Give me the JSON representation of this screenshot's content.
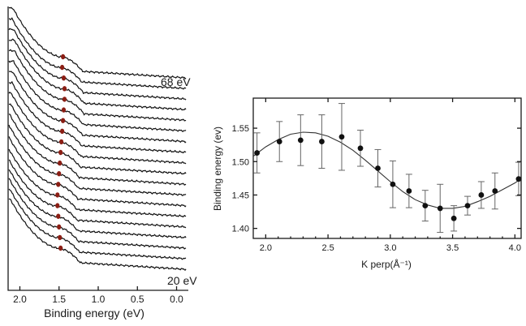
{
  "chart_data": [
    {
      "type": "line",
      "panel": "left",
      "title": "",
      "xlabel": "Binding energy (eV)",
      "ylabel": "",
      "xlim": [
        2.15,
        -0.15
      ],
      "x_ticks": [
        "2.0",
        "1.5",
        "1.0",
        "0.5",
        "0.0"
      ],
      "x_tick_values": [
        2.0,
        1.5,
        1.0,
        0.5,
        0.0
      ],
      "top_label": "68 eV",
      "bottom_label": "20 eV",
      "curve_count": 19,
      "peak_energies": [
        1.45,
        1.46,
        1.44,
        1.43,
        1.43,
        1.44,
        1.45,
        1.46,
        1.47,
        1.48,
        1.49,
        1.5,
        1.51,
        1.52,
        1.52,
        1.51,
        1.5,
        1.49,
        1.48
      ],
      "marker_color": "#8b1e14",
      "curve_color": "#111111"
    },
    {
      "type": "scatter",
      "panel": "right",
      "title": "",
      "xlabel": "K perp(Å⁻¹)",
      "ylabel": "Binding energy (ev)",
      "xlim": [
        1.9,
        4.05
      ],
      "ylim": [
        1.385,
        1.595
      ],
      "x_ticks": [
        "2.0",
        "2.5",
        "3.0",
        "3.5",
        "4.0"
      ],
      "x_tick_values": [
        2.0,
        2.5,
        3.0,
        3.5,
        4.0
      ],
      "y_ticks": [
        "1.40",
        "1.45",
        "1.50",
        "1.55"
      ],
      "y_tick_values": [
        1.4,
        1.45,
        1.5,
        1.55
      ],
      "grid": false,
      "points": [
        {
          "x": 1.93,
          "y": 1.513,
          "err": 0.03
        },
        {
          "x": 2.11,
          "y": 1.53,
          "err": 0.03
        },
        {
          "x": 2.28,
          "y": 1.532,
          "err": 0.038
        },
        {
          "x": 2.45,
          "y": 1.53,
          "err": 0.04
        },
        {
          "x": 2.61,
          "y": 1.537,
          "err": 0.05
        },
        {
          "x": 2.76,
          "y": 1.52,
          "err": 0.027
        },
        {
          "x": 2.9,
          "y": 1.49,
          "err": 0.028
        },
        {
          "x": 3.02,
          "y": 1.466,
          "err": 0.035
        },
        {
          "x": 3.15,
          "y": 1.456,
          "err": 0.025
        },
        {
          "x": 3.28,
          "y": 1.434,
          "err": 0.023
        },
        {
          "x": 3.4,
          "y": 1.43,
          "err": 0.036
        },
        {
          "x": 3.51,
          "y": 1.415,
          "err": 0.019
        },
        {
          "x": 3.62,
          "y": 1.434,
          "err": 0.014
        },
        {
          "x": 3.73,
          "y": 1.45,
          "err": 0.02
        },
        {
          "x": 3.84,
          "y": 1.456,
          "err": 0.027
        },
        {
          "x": 4.03,
          "y": 1.474,
          "err": 0.025
        }
      ],
      "fit_curve": {
        "x": [
          1.9,
          2.0,
          2.1,
          2.2,
          2.3,
          2.4,
          2.5,
          2.6,
          2.7,
          2.8,
          2.9,
          3.0,
          3.1,
          3.2,
          3.3,
          3.4,
          3.5,
          3.6,
          3.7,
          3.8,
          3.9,
          4.0,
          4.05
        ],
        "y": [
          1.508,
          1.522,
          1.533,
          1.541,
          1.544,
          1.543,
          1.538,
          1.529,
          1.517,
          1.502,
          1.486,
          1.47,
          1.455,
          1.443,
          1.435,
          1.43,
          1.43,
          1.433,
          1.44,
          1.448,
          1.458,
          1.468,
          1.474
        ]
      }
    }
  ]
}
